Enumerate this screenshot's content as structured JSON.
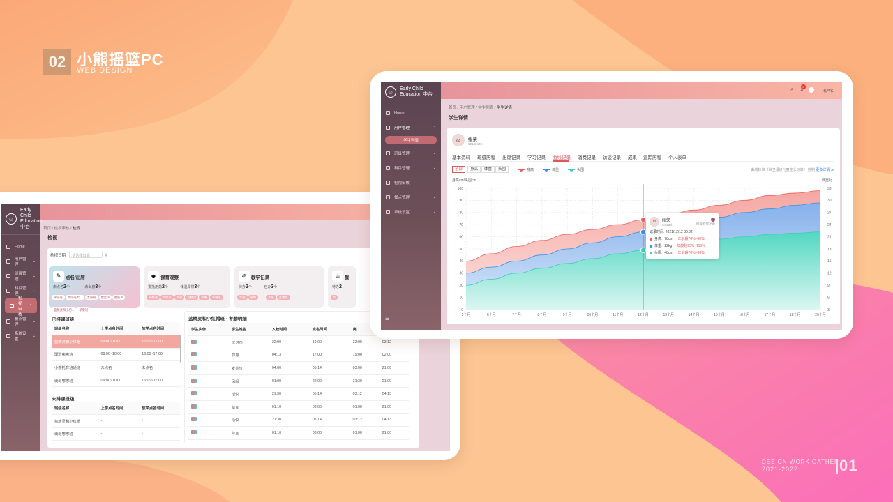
{
  "brand": {
    "num": "02",
    "title": "小熊摇篮PC",
    "subtitle": "WEB DESIGN"
  },
  "footer": {
    "line1": "DESIGN WORK GATHER",
    "line2": "2021-2022",
    "num": "01"
  },
  "colors": {
    "accent": "#d75a5f",
    "height": "#e8625f",
    "weight": "#3f8ee4",
    "head": "#3fcdb3",
    "sidebar": "#5b4450"
  },
  "left_app": {
    "logo": [
      "Early Child",
      "Education 中台"
    ],
    "menu": [
      {
        "label": "Home",
        "icon": "home-icon"
      },
      {
        "label": "用户管理",
        "icon": "user-icon"
      },
      {
        "label": "班级管理",
        "icon": "class-icon"
      },
      {
        "label": "科目管理",
        "icon": "book-icon"
      },
      {
        "label": "检视审核",
        "icon": "check-icon",
        "active": true
      },
      {
        "label": "餐点管理",
        "icon": "meal-icon"
      },
      {
        "label": "系统设置",
        "icon": "settings-icon"
      }
    ],
    "breadcrumb": [
      "首页",
      "检视审核",
      "检视"
    ],
    "page_title": "检视",
    "date_label": "检视日期:",
    "date_placeholder": "请选择日期",
    "stat_cards": [
      {
        "title": "点名/出席",
        "icon": "attendance-icon",
        "line_label": "未点名",
        "line_value": "2",
        "line_unit": "个",
        "line2_label": "未出席",
        "line2_value": "3",
        "line2_unit": "个",
        "chips": [
          "平前班",
          "太阳班大...",
          "太阳班",
          "蘑菇 9",
          "香蕉 9",
          "蓝精灵和小初...",
          "苹果班"
        ]
      },
      {
        "title": "保育观察",
        "icon": "care-icon",
        "line_label": "委托用药",
        "line_value": "2",
        "line_unit": "个",
        "line2_label": "体温异常",
        "line2_value": "3",
        "line2_unit": "个",
        "chips": [
          "草莓班",
          "大象班",
          "大班",
          "蓝精灵",
          "苹果",
          "草莓班"
        ]
      },
      {
        "title": "教学记录",
        "icon": "teach-icon",
        "line_label": "待办",
        "line_value": "2",
        "line_unit": "个",
        "line2_label": "已办",
        "line2_value": "3",
        "line2_unit": "个",
        "chips": [
          "大班",
          "草莓",
          "大班",
          "蓝精灵"
        ]
      },
      {
        "title": "餐",
        "icon": "food-icon",
        "line_label": "待办",
        "line_value": "2",
        "line_unit": "",
        "line2_label": "",
        "line2_value": "",
        "line2_unit": "",
        "chips": [
          "大"
        ]
      }
    ],
    "scheduled": {
      "title": "已排课班级",
      "headers": [
        "班级名称",
        "上学点名时间",
        "放学点名时间"
      ],
      "rows": [
        [
          "蓝精灵和小红帽",
          "09:00~10:00",
          "16:00~17:00"
        ],
        [
          "斑斑嘟嘟班",
          "09:00~10:00",
          "16:00~17:00"
        ],
        [
          "小熊托育班通班",
          "未点名",
          "未点名"
        ],
        [
          "斑斑嘟嘟班",
          "09:00~10:00",
          "16:00~17:00"
        ]
      ]
    },
    "unscheduled": {
      "title": "未排课班级",
      "headers": [
        "班级名称",
        "上学点名时间",
        "放学点名时间"
      ],
      "rows": [
        [
          "蓝精灵和小红帽",
          "-",
          "-"
        ],
        [
          "斑斑嘟嘟班",
          "-",
          "-"
        ]
      ]
    },
    "detail": {
      "title": "蓝精灵和小红帽班 - 考勤明细",
      "headers": [
        "学生头像",
        "学生姓名",
        "入校时间",
        "点名时间",
        "离"
      ],
      "rows": [
        [
          "沈河杰",
          "22:00",
          "19:00",
          "22:00",
          "03:12"
        ],
        [
          "郭慧",
          "04:13",
          "17:00",
          "19:00",
          "02:00"
        ],
        [
          "麦芸竹",
          "04:00",
          "05:14",
          "03:00",
          "21:00"
        ],
        [
          "凤阙",
          "01:00",
          "22:00",
          "21:30",
          "21:00"
        ],
        [
          "活仪",
          "21:30",
          "05:14",
          "03:12",
          "04:13"
        ],
        [
          "草宜",
          "01:10",
          "03:00",
          "01:00",
          "21:00"
        ],
        [
          "活仪",
          "21:30",
          "05:14",
          "03:12",
          "04:13"
        ],
        [
          "草宜",
          "01:10",
          "03:00",
          "01:00",
          "21:00"
        ]
      ]
    }
  },
  "right_app": {
    "logo": [
      "Early Child",
      "Education 中台"
    ],
    "menu": [
      {
        "label": "Home",
        "icon": "home-icon"
      },
      {
        "label": "用户管理",
        "icon": "user-icon"
      },
      {
        "label": "班级管理",
        "icon": "class-icon"
      },
      {
        "label": "科目管理",
        "icon": "book-icon"
      },
      {
        "label": "检视审核",
        "icon": "check-icon"
      },
      {
        "label": "餐点管理",
        "icon": "meal-icon"
      },
      {
        "label": "系统设置",
        "icon": "settings-icon"
      }
    ],
    "submenu_active": "学生列表",
    "user_name": "用户名",
    "notification_count": "4",
    "breadcrumb": [
      "首页",
      "用户管理",
      "学生列表",
      "学生详情"
    ],
    "page_title": "学生详情",
    "student": {
      "name": "缪荣",
      "id": "52140495"
    },
    "tabs": [
      "基本资料",
      "班级历程",
      "出席记录",
      "学习记录",
      "曲线记录",
      "消费记录",
      "访谈记录",
      "成果",
      "追踪历程",
      "个人表单"
    ],
    "active_tab": 4,
    "segments": [
      "全部",
      "身高",
      "体重",
      "头围"
    ],
    "legend": [
      "身高",
      "体重",
      "头围"
    ],
    "standard_note": "曲线标准《世卫组织儿童生长标准》",
    "standard_action": "控制",
    "more_link": "更多详情 ≫",
    "tooltip": {
      "name": "缪荣",
      "age": "6m23d",
      "recorder": "班级老师记录",
      "time_label": "记录时间:",
      "time": "2021/12/12 08:02",
      "rows": [
        {
          "label": "身高:",
          "value": "78cm",
          "range": "年龄段78%~80%"
        },
        {
          "label": "体重:",
          "value": "22kg",
          "range": "年龄段95%~110%"
        },
        {
          "label": "头围:",
          "value": "48cm",
          "range": "年龄段78%~80%"
        }
      ]
    }
  },
  "chart_data": {
    "type": "area",
    "ylabel": "身高cm/头围cm",
    "y2label": "体重kg",
    "ylim": [
      0,
      100
    ],
    "y2lim": [
      3,
      33
    ],
    "y_ticks": [
      0,
      10,
      20,
      30,
      40,
      50,
      60,
      70,
      80,
      90,
      100
    ],
    "y2_ticks": [
      3,
      6,
      9,
      12,
      15,
      18,
      21,
      24,
      27,
      30,
      33
    ],
    "categories": [
      "5个月",
      "6个月",
      "7个月",
      "8个月",
      "9个月",
      "10个月",
      "11个月",
      "12个月",
      "13个月",
      "14个月",
      "15个月",
      "16个月",
      "17个月",
      "18个月",
      "20个月"
    ],
    "series": [
      {
        "name": "身高",
        "values": [
          40,
          46,
          52,
          57,
          62,
          66,
          70,
          74,
          78,
          82,
          86,
          90,
          94,
          96,
          98
        ]
      },
      {
        "name": "体重",
        "values": [
          30,
          35,
          40,
          45,
          50,
          55,
          60,
          64,
          68,
          72,
          76,
          80,
          83,
          86,
          88
        ]
      },
      {
        "name": "头围",
        "values": [
          20,
          25,
          30,
          34,
          38,
          42,
          46,
          49,
          52,
          55,
          58,
          60,
          62,
          63,
          64
        ]
      }
    ],
    "highlight_index": 7,
    "grid": true
  }
}
